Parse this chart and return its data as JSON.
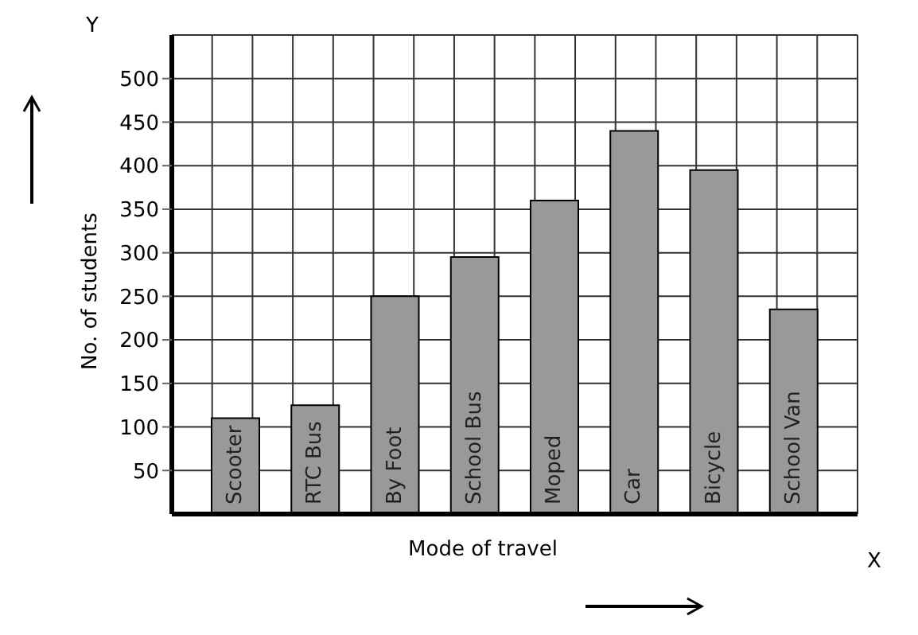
{
  "chart_data": {
    "type": "bar",
    "xlabel": "Mode of travel",
    "ylabel": "No. of students",
    "categories": [
      "Scooter",
      "RTC Bus",
      "By Foot",
      "School Bus",
      "Moped",
      "Car",
      "Bicycle",
      "School Van"
    ],
    "values": [
      110,
      125,
      250,
      295,
      360,
      440,
      395,
      235
    ],
    "color": "#999999",
    "ylim": [
      0,
      550
    ],
    "yticks": [
      50,
      100,
      150,
      200,
      250,
      300,
      350,
      400,
      450,
      500
    ],
    "grid": true,
    "annotations": [
      "Y",
      "X"
    ]
  }
}
